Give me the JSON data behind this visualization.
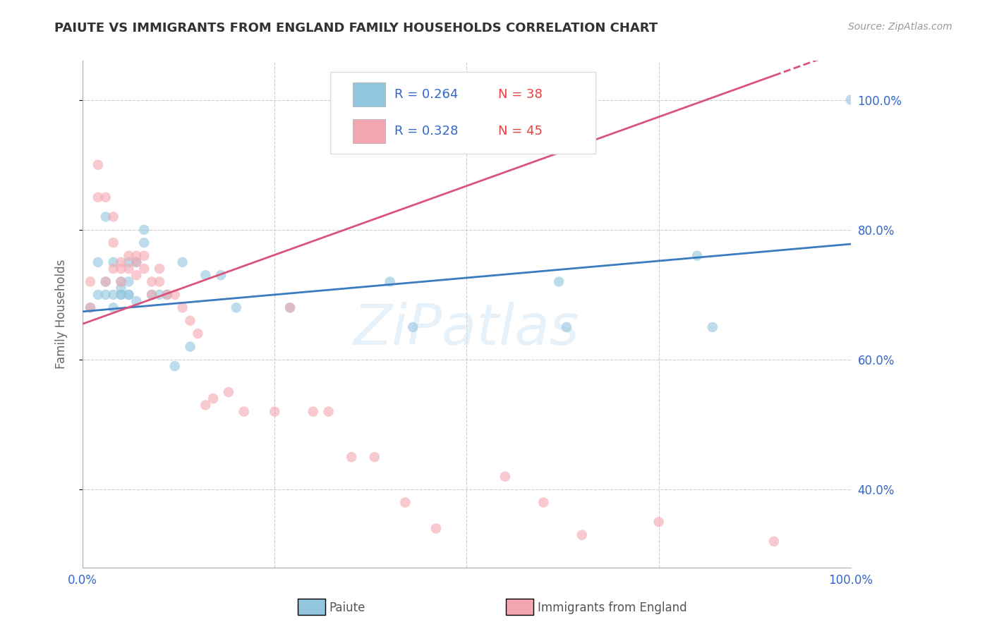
{
  "title": "PAIUTE VS IMMIGRANTS FROM ENGLAND FAMILY HOUSEHOLDS CORRELATION CHART",
  "source": "Source: ZipAtlas.com",
  "ylabel": "Family Households",
  "xlim": [
    0,
    1.0
  ],
  "ylim": [
    0.28,
    1.06
  ],
  "yticks": [
    0.4,
    0.6,
    0.8,
    1.0
  ],
  "ytick_labels": [
    "40.0%",
    "60.0%",
    "80.0%",
    "100.0%"
  ],
  "xticks": [
    0.0,
    0.25,
    0.5,
    0.75,
    1.0
  ],
  "xtick_labels": [
    "0.0%",
    "",
    "",
    "",
    "100.0%"
  ],
  "blue_color": "#92c5de",
  "pink_color": "#f4a6b0",
  "blue_line_color": "#3a7abf",
  "pink_line_color": "#d9547a",
  "background": "#ffffff",
  "blue_r": 0.264,
  "blue_n": 38,
  "pink_r": 0.328,
  "pink_n": 45,
  "paiute_x": [
    0.01,
    0.02,
    0.02,
    0.03,
    0.03,
    0.03,
    0.04,
    0.04,
    0.04,
    0.05,
    0.05,
    0.05,
    0.05,
    0.06,
    0.06,
    0.06,
    0.06,
    0.07,
    0.07,
    0.08,
    0.08,
    0.09,
    0.1,
    0.11,
    0.12,
    0.13,
    0.14,
    0.16,
    0.18,
    0.2,
    0.27,
    0.4,
    0.43,
    0.62,
    0.63,
    0.8,
    0.82,
    1.0
  ],
  "paiute_y": [
    0.68,
    0.7,
    0.75,
    0.7,
    0.72,
    0.82,
    0.68,
    0.7,
    0.75,
    0.7,
    0.71,
    0.7,
    0.72,
    0.7,
    0.7,
    0.72,
    0.75,
    0.69,
    0.75,
    0.78,
    0.8,
    0.7,
    0.7,
    0.7,
    0.59,
    0.75,
    0.62,
    0.73,
    0.73,
    0.68,
    0.68,
    0.72,
    0.65,
    0.72,
    0.65,
    0.76,
    0.65,
    1.0
  ],
  "england_x": [
    0.01,
    0.01,
    0.02,
    0.02,
    0.03,
    0.03,
    0.04,
    0.04,
    0.04,
    0.05,
    0.05,
    0.05,
    0.06,
    0.06,
    0.07,
    0.07,
    0.07,
    0.08,
    0.08,
    0.09,
    0.09,
    0.1,
    0.1,
    0.11,
    0.12,
    0.13,
    0.14,
    0.15,
    0.16,
    0.17,
    0.19,
    0.21,
    0.25,
    0.27,
    0.3,
    0.32,
    0.35,
    0.38,
    0.42,
    0.46,
    0.55,
    0.6,
    0.65,
    0.75,
    0.9
  ],
  "england_y": [
    0.68,
    0.72,
    0.85,
    0.9,
    0.85,
    0.72,
    0.82,
    0.74,
    0.78,
    0.75,
    0.72,
    0.74,
    0.74,
    0.76,
    0.76,
    0.73,
    0.75,
    0.74,
    0.76,
    0.72,
    0.7,
    0.74,
    0.72,
    0.7,
    0.7,
    0.68,
    0.66,
    0.64,
    0.53,
    0.54,
    0.55,
    0.52,
    0.52,
    0.68,
    0.52,
    0.52,
    0.45,
    0.45,
    0.38,
    0.34,
    0.42,
    0.38,
    0.33,
    0.35,
    0.32
  ]
}
